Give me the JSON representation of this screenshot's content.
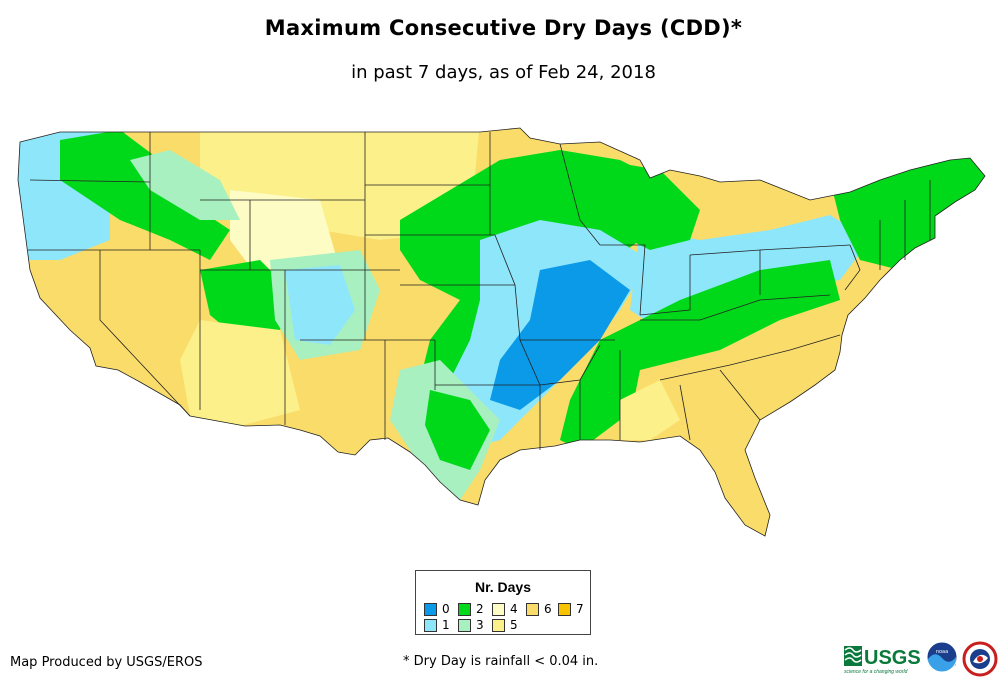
{
  "title": "Maximum Consecutive Dry Days (CDD)*",
  "subtitle": "in past 7 days, as of Feb 24, 2018",
  "legend": {
    "title": "Nr. Days",
    "items": [
      {
        "label": "0",
        "color": "#0a9ae8"
      },
      {
        "label": "1",
        "color": "#8ee6fb"
      },
      {
        "label": "2",
        "color": "#00d81a"
      },
      {
        "label": "3",
        "color": "#a8f0c0"
      },
      {
        "label": "4",
        "color": "#fcfcc4"
      },
      {
        "label": "5",
        "color": "#fcf08a"
      },
      {
        "label": "6",
        "color": "#fadc6a"
      },
      {
        "label": "7",
        "color": "#f8c400"
      }
    ]
  },
  "credit": "Map Produced by USGS/EROS",
  "footnote": "* Dry Day is rainfall < 0.04 in.",
  "logos": {
    "usgs_text": "USGS",
    "usgs_tagline": "science for a changing world",
    "noaa_text": "noaa"
  }
}
